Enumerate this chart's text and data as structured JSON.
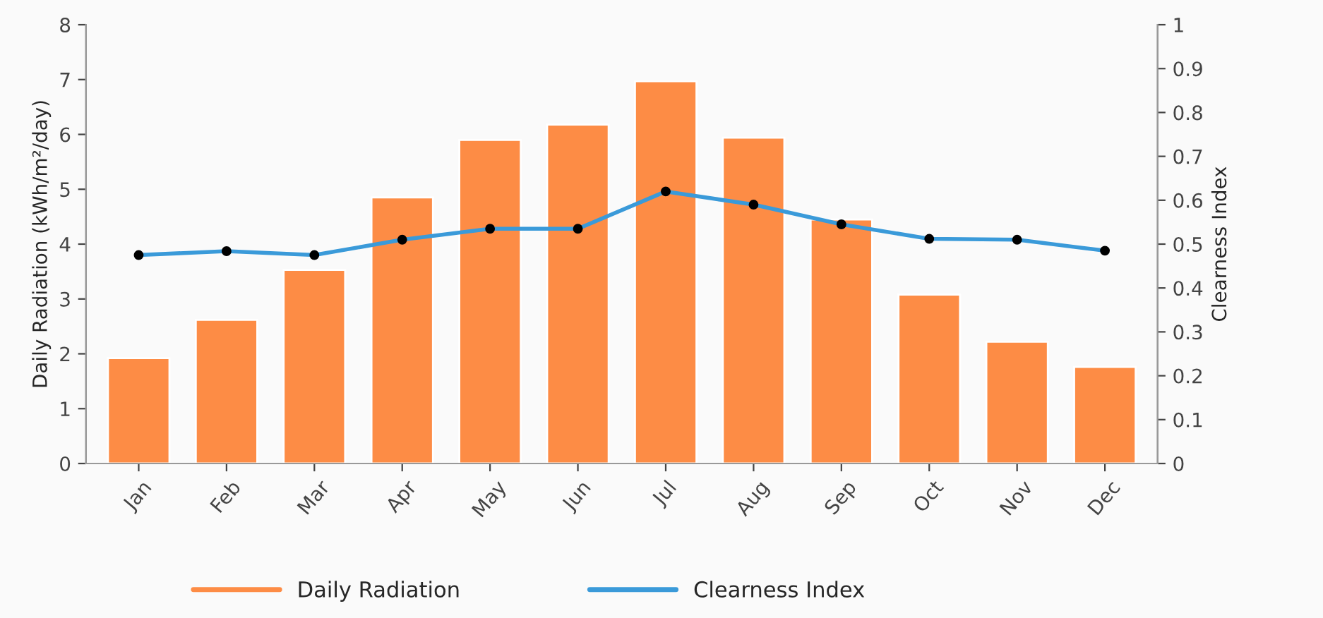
{
  "chart_data": {
    "type": "bar",
    "ylabel": "Daily Radiation (kWh/m²/day)",
    "y2label": "Clearness Index",
    "categories": [
      "Jan",
      "Feb",
      "Mar",
      "Apr",
      "May",
      "Jun",
      "Jul",
      "Aug",
      "Sep",
      "Oct",
      "Nov",
      "Dec"
    ],
    "series": [
      {
        "name": "Daily Radiation",
        "color": "#fd8c45",
        "values": [
          1.92,
          2.62,
          3.53,
          4.85,
          5.9,
          6.18,
          6.97,
          5.94,
          4.45,
          3.08,
          2.22,
          1.76
        ]
      },
      {
        "name": "Clearness Index",
        "type": "line",
        "axis": "y2",
        "color": "#3a9ad9",
        "marker": "circle",
        "values": [
          0.475,
          0.484,
          0.475,
          0.51,
          0.535,
          0.535,
          0.62,
          0.59,
          0.545,
          0.512,
          0.51,
          0.485
        ]
      }
    ],
    "ylim": [
      0,
      8
    ],
    "yticks": [
      0,
      1,
      2,
      3,
      4,
      5,
      6,
      7,
      8
    ],
    "y2lim": [
      0,
      1
    ],
    "y2ticks": [
      0,
      0.1,
      0.2,
      0.3,
      0.4,
      0.5,
      0.6,
      0.7,
      0.8,
      0.9,
      1
    ],
    "grid": false,
    "legend": "bottom"
  }
}
